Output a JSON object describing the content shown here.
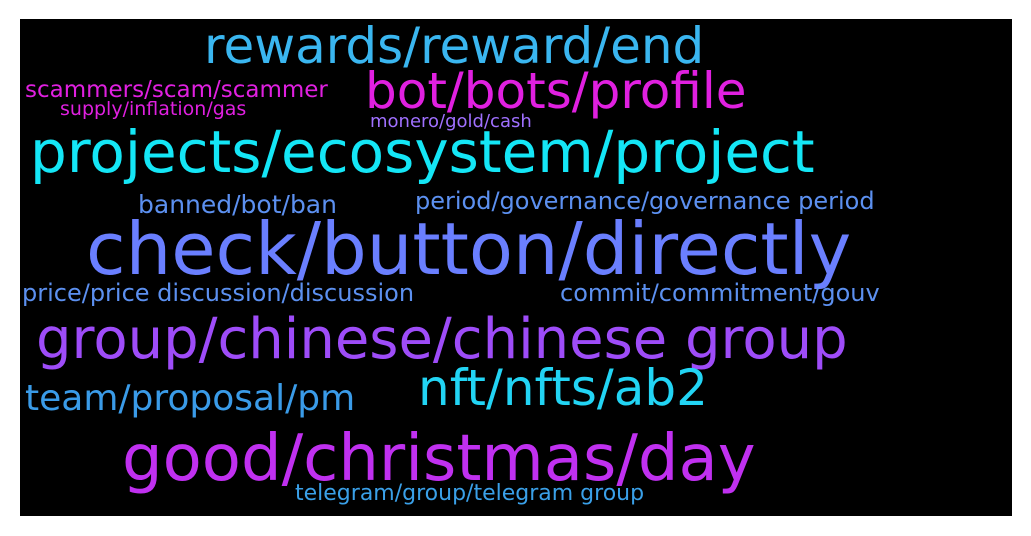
{
  "wordcloud": {
    "words": [
      {
        "text": "rewards/reward/end",
        "color": "#3ab6f0"
      },
      {
        "text": "bot/bots/profile",
        "color": "#e020e0"
      },
      {
        "text": "scammers/scam/scammer",
        "color": "#e020e0"
      },
      {
        "text": "supply/inflation/gas",
        "color": "#e020e0"
      },
      {
        "text": "monero/gold/cash",
        "color": "#a070ff"
      },
      {
        "text": "projects/ecosystem/project",
        "color": "#14e6f6"
      },
      {
        "text": "banned/bot/ban",
        "color": "#5c90f0"
      },
      {
        "text": "period/governance/governance period",
        "color": "#5c90f0"
      },
      {
        "text": "check/button/directly",
        "color": "#6a7fff"
      },
      {
        "text": "price/price discussion/discussion",
        "color": "#5c90f0"
      },
      {
        "text": "commit/commitment/gouv",
        "color": "#5c90f0"
      },
      {
        "text": "group/chinese/chinese group",
        "color": "#9e4cf8"
      },
      {
        "text": "team/proposal/pm",
        "color": "#3a9be8"
      },
      {
        "text": "nft/nfts/ab2",
        "color": "#22d4f4"
      },
      {
        "text": "good/christmas/day",
        "color": "#c030f0"
      },
      {
        "text": "telegram/group/telegram group",
        "color": "#3aa0e8"
      }
    ]
  }
}
